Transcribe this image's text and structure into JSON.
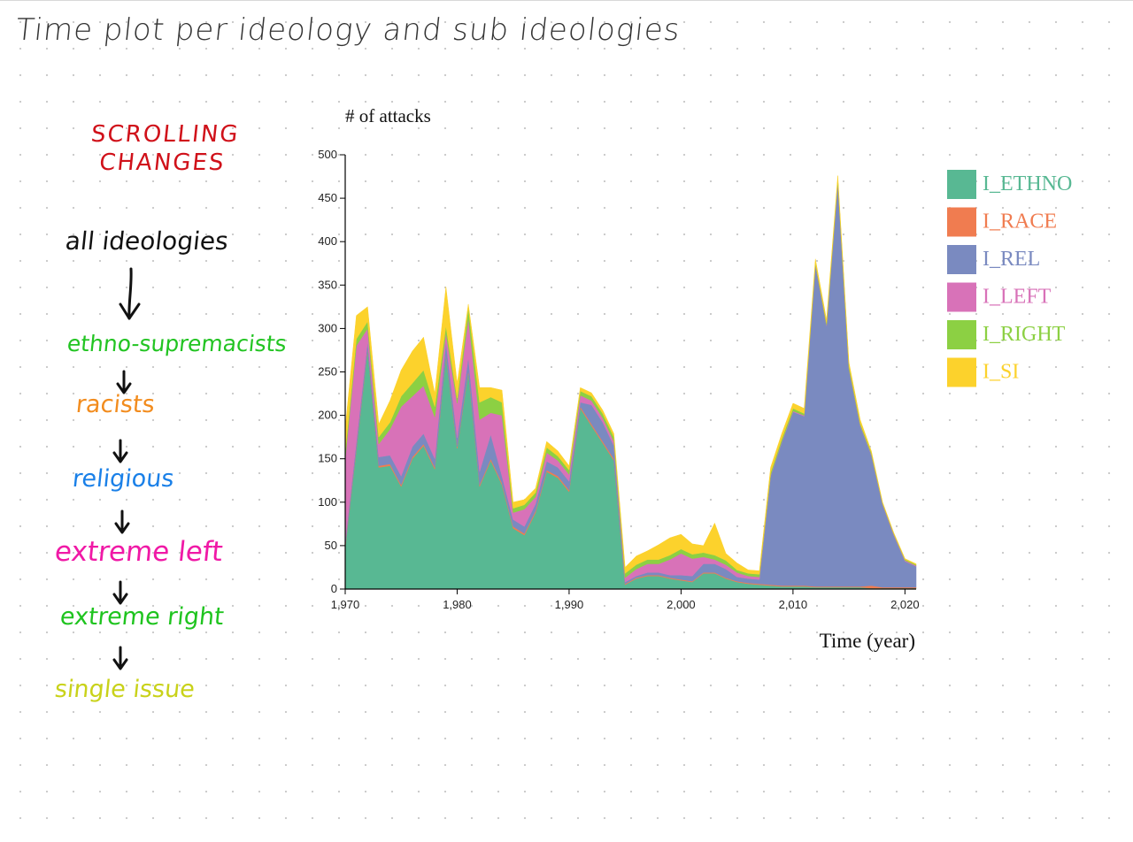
{
  "page": {
    "title": "Time plot per ideology and sub ideologies"
  },
  "notes": {
    "scroll_line1": "SCROLLING",
    "scroll_line2": "CHANGES",
    "scroll_color": "#d0111a",
    "sequence": [
      {
        "label": "all ideologies",
        "color": "#111111"
      },
      {
        "label": "ethno-supremacists",
        "color": "#22c422"
      },
      {
        "label": "racists",
        "color": "#f28c1e"
      },
      {
        "label": "religious",
        "color": "#1a80e8"
      },
      {
        "label": "extreme left",
        "color": "#f019a6"
      },
      {
        "label": "extreme right",
        "color": "#1fc41f"
      },
      {
        "label": "single issue",
        "color": "#c9d21a"
      }
    ]
  },
  "chart_data": {
    "type": "area",
    "stacked": true,
    "title": "# of attacks",
    "xlabel": "Time (year)",
    "ylabel": "# of attacks",
    "xlim": [
      1970,
      2021
    ],
    "ylim": [
      0,
      500
    ],
    "xticks": [
      "1,970",
      "1,980",
      "1,990",
      "2,000",
      "2,010",
      "2,020"
    ],
    "yticks": [
      "0",
      "50",
      "100",
      "150",
      "200",
      "250",
      "300",
      "350",
      "400",
      "450",
      "500"
    ],
    "legend_position": "right",
    "x": [
      1970,
      1971,
      1972,
      1973,
      1974,
      1975,
      1976,
      1977,
      1978,
      1979,
      1980,
      1981,
      1982,
      1983,
      1984,
      1985,
      1986,
      1987,
      1988,
      1989,
      1990,
      1991,
      1992,
      1993,
      1994,
      1995,
      1996,
      1997,
      1998,
      1999,
      2000,
      2001,
      2002,
      2003,
      2004,
      2005,
      2006,
      2007,
      2008,
      2009,
      2010,
      2011,
      2012,
      2013,
      2014,
      2015,
      2016,
      2017,
      2018,
      2019,
      2020,
      2021
    ],
    "series": [
      {
        "name": "I_ETHNO",
        "color": "#58b893",
        "values": [
          48,
          160,
          275,
          140,
          142,
          118,
          150,
          165,
          138,
          268,
          162,
          250,
          118,
          148,
          120,
          70,
          62,
          88,
          135,
          128,
          112,
          208,
          188,
          168,
          148,
          5,
          12,
          15,
          15,
          12,
          10,
          8,
          18,
          18,
          12,
          8,
          6,
          5,
          4,
          3,
          3,
          3,
          2,
          2,
          2,
          2,
          2,
          1,
          1,
          1,
          1,
          1
        ]
      },
      {
        "name": "I_RACE",
        "color": "#f07c50",
        "values": [
          2,
          2,
          2,
          2,
          2,
          2,
          2,
          2,
          2,
          2,
          2,
          2,
          2,
          2,
          2,
          2,
          2,
          2,
          2,
          2,
          2,
          2,
          2,
          2,
          2,
          1,
          1,
          1,
          1,
          1,
          1,
          1,
          1,
          1,
          1,
          1,
          1,
          1,
          1,
          1,
          1,
          1,
          1,
          1,
          1,
          1,
          1,
          3,
          1,
          1,
          1,
          1
        ]
      },
      {
        "name": "I_REL",
        "color": "#7a8ac0",
        "values": [
          5,
          8,
          8,
          10,
          10,
          10,
          12,
          12,
          10,
          15,
          10,
          15,
          15,
          28,
          8,
          8,
          8,
          8,
          10,
          10,
          10,
          5,
          22,
          22,
          15,
          2,
          2,
          3,
          3,
          3,
          5,
          6,
          10,
          10,
          10,
          5,
          5,
          5,
          125,
          165,
          200,
          195,
          370,
          300,
          465,
          250,
          185,
          150,
          95,
          60,
          30,
          24
        ]
      },
      {
        "name": "I_LEFT",
        "color": "#d872b8",
        "values": [
          95,
          110,
          15,
          15,
          30,
          80,
          58,
          55,
          48,
          10,
          40,
          45,
          60,
          25,
          70,
          8,
          20,
          8,
          10,
          8,
          8,
          8,
          5,
          5,
          5,
          5,
          8,
          10,
          10,
          18,
          25,
          20,
          8,
          5,
          5,
          5,
          3,
          3,
          1,
          1,
          1,
          1,
          1,
          1,
          1,
          1,
          1,
          1,
          1,
          1,
          1,
          1
        ]
      },
      {
        "name": "I_RIGHT",
        "color": "#8cd043",
        "values": [
          8,
          8,
          8,
          8,
          8,
          12,
          15,
          18,
          12,
          8,
          6,
          12,
          20,
          18,
          15,
          5,
          5,
          5,
          6,
          5,
          5,
          5,
          5,
          5,
          5,
          5,
          5,
          5,
          5,
          5,
          5,
          5,
          5,
          5,
          5,
          3,
          3,
          3,
          3,
          3,
          3,
          2,
          2,
          2,
          3,
          3,
          2,
          2,
          1,
          1,
          1,
          1
        ]
      },
      {
        "name": "I_SI",
        "color": "#fcd22c",
        "values": [
          27,
          27,
          17,
          15,
          25,
          30,
          37,
          38,
          15,
          45,
          17,
          4,
          17,
          11,
          14,
          7,
          6,
          5,
          7,
          6,
          5,
          4,
          4,
          4,
          4,
          7,
          10,
          10,
          17,
          20,
          17,
          12,
          8,
          37,
          8,
          8,
          4,
          4,
          6,
          6,
          6,
          6,
          4,
          4,
          4,
          4,
          4,
          2,
          1,
          1,
          1,
          1
        ]
      }
    ]
  }
}
